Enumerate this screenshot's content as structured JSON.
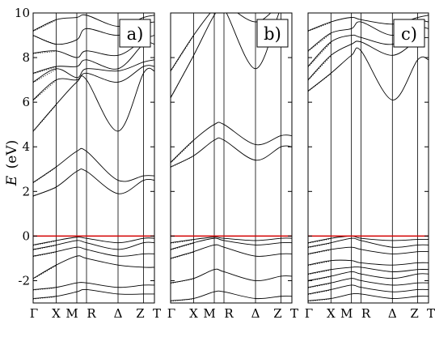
{
  "chart_data": {
    "type": "line",
    "ylabel_symbol": "E",
    "ylabel_unit": "(eV)",
    "ylim": [
      -3,
      10
    ],
    "y_ticks": [
      -2,
      0,
      2,
      4,
      6,
      8,
      10
    ],
    "x_ticks": [
      "Γ",
      "X",
      "M",
      "R",
      "Δ",
      "Z",
      "T"
    ],
    "x_tick_positions": [
      0,
      0.19,
      0.36,
      0.44,
      0.7,
      0.91,
      1.0
    ],
    "fermi_level": 0,
    "fermi_color": "#d40000",
    "panels": [
      {
        "label": "a)",
        "bands": [
          [
            [
              0,
              -2.8
            ],
            [
              0.19,
              -2.7
            ],
            [
              0.36,
              -2.5
            ],
            [
              0.44,
              -2.4
            ],
            [
              0.7,
              -2.6
            ],
            [
              0.91,
              -2.6
            ],
            [
              1.0,
              -2.6
            ]
          ],
          [
            [
              0,
              -2.4
            ],
            [
              0.19,
              -2.3
            ],
            [
              0.36,
              -2.1
            ],
            [
              0.44,
              -2.1
            ],
            [
              0.7,
              -2.3
            ],
            [
              0.91,
              -2.2
            ],
            [
              1.0,
              -2.2
            ]
          ],
          [
            [
              0,
              -1.9
            ],
            [
              0.19,
              -1.3
            ],
            [
              0.36,
              -0.9
            ],
            [
              0.44,
              -1.0
            ],
            [
              0.7,
              -1.3
            ],
            [
              0.91,
              -1.4
            ],
            [
              1.0,
              -1.4
            ]
          ],
          [
            [
              0,
              -0.9
            ],
            [
              0.19,
              -0.7
            ],
            [
              0.36,
              -0.5
            ],
            [
              0.44,
              -0.6
            ],
            [
              0.7,
              -0.9
            ],
            [
              0.91,
              -0.8
            ],
            [
              1.0,
              -0.8
            ]
          ],
          [
            [
              0,
              -0.6
            ],
            [
              0.19,
              -0.4
            ],
            [
              0.36,
              -0.2
            ],
            [
              0.44,
              -0.3
            ],
            [
              0.7,
              -0.6
            ],
            [
              0.91,
              -0.3
            ],
            [
              1.0,
              -0.3
            ]
          ],
          [
            [
              0,
              -0.4
            ],
            [
              0.19,
              -0.2
            ],
            [
              0.36,
              -0.05
            ],
            [
              0.44,
              -0.1
            ],
            [
              0.7,
              -0.3
            ],
            [
              0.91,
              -0.1
            ],
            [
              1.0,
              -0.1
            ]
          ],
          [
            [
              0,
              1.8
            ],
            [
              0.19,
              2.2
            ],
            [
              0.36,
              2.9
            ],
            [
              0.44,
              2.9
            ],
            [
              0.7,
              1.9
            ],
            [
              0.91,
              2.5
            ],
            [
              1.0,
              2.5
            ]
          ],
          [
            [
              0,
              2.4
            ],
            [
              0.19,
              3.1
            ],
            [
              0.36,
              3.8
            ],
            [
              0.44,
              3.8
            ],
            [
              0.7,
              2.5
            ],
            [
              0.91,
              2.7
            ],
            [
              1.0,
              2.7
            ]
          ],
          [
            [
              0,
              4.7
            ],
            [
              0.19,
              5.9
            ],
            [
              0.36,
              6.9
            ],
            [
              0.44,
              7.0
            ],
            [
              0.7,
              4.7
            ],
            [
              0.91,
              7.3
            ],
            [
              1.0,
              7.4
            ]
          ],
          [
            [
              0,
              6.1
            ],
            [
              0.19,
              7.0
            ],
            [
              0.36,
              7.0
            ],
            [
              0.44,
              7.3
            ],
            [
              0.7,
              6.9
            ],
            [
              0.91,
              7.6
            ],
            [
              1.0,
              7.6
            ]
          ],
          [
            [
              0,
              6.9
            ],
            [
              0.19,
              7.5
            ],
            [
              0.36,
              7.1
            ],
            [
              0.44,
              7.5
            ],
            [
              0.7,
              7.4
            ],
            [
              0.91,
              7.8
            ],
            [
              1.0,
              7.9
            ]
          ],
          [
            [
              0,
              7.3
            ],
            [
              0.19,
              7.6
            ],
            [
              0.36,
              7.6
            ],
            [
              0.44,
              7.9
            ],
            [
              0.7,
              7.5
            ],
            [
              0.91,
              8.6
            ],
            [
              1.0,
              8.6
            ]
          ],
          [
            [
              0,
              8.2
            ],
            [
              0.19,
              8.3
            ],
            [
              0.36,
              8.0
            ],
            [
              0.44,
              8.3
            ],
            [
              0.7,
              8.1
            ],
            [
              0.91,
              8.8
            ],
            [
              1.0,
              9.0
            ]
          ],
          [
            [
              0,
              9.0
            ],
            [
              0.19,
              8.6
            ],
            [
              0.36,
              8.8
            ],
            [
              0.44,
              9.3
            ],
            [
              0.7,
              9.0
            ],
            [
              0.91,
              9.5
            ],
            [
              1.0,
              9.6
            ]
          ],
          [
            [
              0,
              9.2
            ],
            [
              0.19,
              9.7
            ],
            [
              0.36,
              9.8
            ],
            [
              0.44,
              9.9
            ],
            [
              0.7,
              9.4
            ],
            [
              0.91,
              9.8
            ],
            [
              1.0,
              9.9
            ]
          ]
        ]
      },
      {
        "label": "b)",
        "bands": [
          [
            [
              0,
              -2.9
            ],
            [
              0.19,
              -2.8
            ],
            [
              0.36,
              -2.5
            ],
            [
              0.44,
              -2.5
            ],
            [
              0.7,
              -2.8
            ],
            [
              0.91,
              -2.7
            ],
            [
              1.0,
              -2.7
            ]
          ],
          [
            [
              0,
              -2.1
            ],
            [
              0.19,
              -1.9
            ],
            [
              0.36,
              -1.5
            ],
            [
              0.44,
              -1.6
            ],
            [
              0.7,
              -2.0
            ],
            [
              0.91,
              -1.8
            ],
            [
              1.0,
              -1.8
            ]
          ],
          [
            [
              0,
              -1.0
            ],
            [
              0.19,
              -0.7
            ],
            [
              0.36,
              -0.4
            ],
            [
              0.44,
              -0.5
            ],
            [
              0.7,
              -0.9
            ],
            [
              0.91,
              -0.8
            ],
            [
              1.0,
              -0.8
            ]
          ],
          [
            [
              0,
              -0.6
            ],
            [
              0.19,
              -0.3
            ],
            [
              0.36,
              -0.1
            ],
            [
              0.44,
              -0.2
            ],
            [
              0.7,
              -0.4
            ],
            [
              0.91,
              -0.3
            ],
            [
              1.0,
              -0.3
            ]
          ],
          [
            [
              0,
              -0.3
            ],
            [
              0.19,
              -0.15
            ],
            [
              0.36,
              -0.05
            ],
            [
              0.44,
              -0.1
            ],
            [
              0.7,
              -0.2
            ],
            [
              0.91,
              -0.1
            ],
            [
              1.0,
              -0.1
            ]
          ],
          [
            [
              0,
              3.1
            ],
            [
              0.19,
              3.6
            ],
            [
              0.36,
              4.3
            ],
            [
              0.44,
              4.3
            ],
            [
              0.7,
              3.4
            ],
            [
              0.91,
              4.0
            ],
            [
              1.0,
              4.0
            ]
          ],
          [
            [
              0,
              3.3
            ],
            [
              0.19,
              4.3
            ],
            [
              0.36,
              5.0
            ],
            [
              0.44,
              5.0
            ],
            [
              0.7,
              4.1
            ],
            [
              0.91,
              4.5
            ],
            [
              1.0,
              4.5
            ]
          ],
          [
            [
              0,
              6.2
            ],
            [
              0.19,
              8.1
            ],
            [
              0.36,
              9.9
            ],
            [
              0.44,
              10.2
            ],
            [
              0.7,
              7.5
            ],
            [
              0.91,
              10.2
            ],
            [
              1.0,
              10.2
            ]
          ],
          [
            [
              0,
              7.4
            ],
            [
              0.19,
              9.0
            ],
            [
              0.36,
              10.2
            ],
            [
              0.44,
              10.4
            ],
            [
              0.7,
              9.6
            ],
            [
              0.91,
              10.4
            ],
            [
              1.0,
              10.4
            ]
          ]
        ]
      },
      {
        "label": "c)",
        "bands": [
          [
            [
              0,
              -2.9
            ],
            [
              0.19,
              -2.8
            ],
            [
              0.36,
              -2.6
            ],
            [
              0.44,
              -2.6
            ],
            [
              0.7,
              -2.8
            ],
            [
              0.91,
              -2.7
            ],
            [
              1.0,
              -2.7
            ]
          ],
          [
            [
              0,
              -2.6
            ],
            [
              0.19,
              -2.4
            ],
            [
              0.36,
              -2.2
            ],
            [
              0.44,
              -2.3
            ],
            [
              0.7,
              -2.5
            ],
            [
              0.91,
              -2.4
            ],
            [
              1.0,
              -2.4
            ]
          ],
          [
            [
              0,
              -2.3
            ],
            [
              0.19,
              -2.1
            ],
            [
              0.36,
              -1.9
            ],
            [
              0.44,
              -2.0
            ],
            [
              0.7,
              -2.2
            ],
            [
              0.91,
              -2.1
            ],
            [
              1.0,
              -2.1
            ]
          ],
          [
            [
              0,
              -2.0
            ],
            [
              0.19,
              -1.8
            ],
            [
              0.36,
              -1.6
            ],
            [
              0.44,
              -1.7
            ],
            [
              0.7,
              -1.9
            ],
            [
              0.91,
              -1.7
            ],
            [
              1.0,
              -1.7
            ]
          ],
          [
            [
              0,
              -1.7
            ],
            [
              0.19,
              -1.5
            ],
            [
              0.36,
              -1.4
            ],
            [
              0.44,
              -1.4
            ],
            [
              0.7,
              -1.6
            ],
            [
              0.91,
              -1.5
            ],
            [
              1.0,
              -1.5
            ]
          ],
          [
            [
              0,
              -1.3
            ],
            [
              0.19,
              -1.1
            ],
            [
              0.36,
              -1.1
            ],
            [
              0.44,
              -1.2
            ],
            [
              0.7,
              -1.3
            ],
            [
              0.91,
              -1.2
            ],
            [
              1.0,
              -1.2
            ]
          ],
          [
            [
              0,
              -0.8
            ],
            [
              0.19,
              -0.6
            ],
            [
              0.36,
              -0.5
            ],
            [
              0.44,
              -0.6
            ],
            [
              0.7,
              -0.8
            ],
            [
              0.91,
              -0.7
            ],
            [
              1.0,
              -0.7
            ]
          ],
          [
            [
              0,
              -0.5
            ],
            [
              0.19,
              -0.3
            ],
            [
              0.36,
              -0.1
            ],
            [
              0.44,
              -0.2
            ],
            [
              0.7,
              -0.5
            ],
            [
              0.91,
              -0.4
            ],
            [
              1.0,
              -0.4
            ]
          ],
          [
            [
              0,
              -0.3
            ],
            [
              0.19,
              -0.1
            ],
            [
              0.36,
              0.0
            ],
            [
              0.44,
              -0.1
            ],
            [
              0.7,
              -0.2
            ],
            [
              0.91,
              -0.15
            ],
            [
              1.0,
              -0.15
            ]
          ],
          [
            [
              0,
              6.5
            ],
            [
              0.19,
              7.3
            ],
            [
              0.36,
              8.1
            ],
            [
              0.44,
              8.3
            ],
            [
              0.7,
              6.1
            ],
            [
              0.91,
              7.9
            ],
            [
              1.0,
              7.9
            ]
          ],
          [
            [
              0,
              7.0
            ],
            [
              0.19,
              8.1
            ],
            [
              0.36,
              8.6
            ],
            [
              0.44,
              8.7
            ],
            [
              0.7,
              8.1
            ],
            [
              0.91,
              8.8
            ],
            [
              1.0,
              8.9
            ]
          ],
          [
            [
              0,
              7.6
            ],
            [
              0.19,
              8.7
            ],
            [
              0.36,
              9.0
            ],
            [
              0.44,
              8.9
            ],
            [
              0.7,
              8.6
            ],
            [
              0.91,
              9.3
            ],
            [
              1.0,
              9.3
            ]
          ],
          [
            [
              0,
              8.3
            ],
            [
              0.19,
              9.1
            ],
            [
              0.36,
              9.3
            ],
            [
              0.44,
              9.6
            ],
            [
              0.7,
              9.0
            ],
            [
              0.91,
              9.6
            ],
            [
              1.0,
              9.6
            ]
          ],
          [
            [
              0,
              9.2
            ],
            [
              0.19,
              9.6
            ],
            [
              0.36,
              9.8
            ],
            [
              0.44,
              9.7
            ],
            [
              0.7,
              9.5
            ],
            [
              0.91,
              9.8
            ],
            [
              1.0,
              9.9
            ]
          ]
        ]
      }
    ]
  }
}
